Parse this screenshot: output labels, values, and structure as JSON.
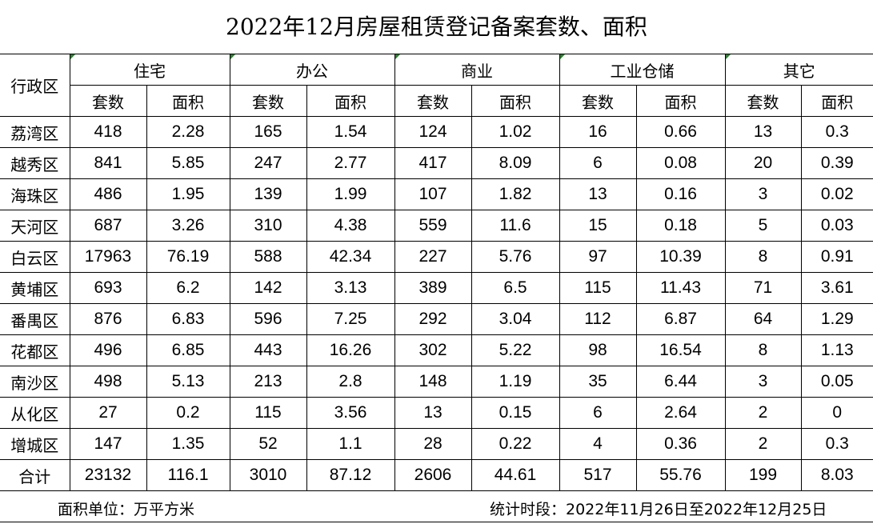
{
  "title": "2022年12月房屋租赁登记备案套数、面积",
  "header": {
    "district_label": "行政区",
    "groups": [
      "住宅",
      "办公",
      "商业",
      "工业仓储",
      "其它"
    ],
    "count_label": "套数",
    "area_label": "面积"
  },
  "rows": [
    {
      "district": "荔湾区",
      "values": [
        "418",
        "2.28",
        "165",
        "1.54",
        "124",
        "1.02",
        "16",
        "0.66",
        "13",
        "0.3"
      ]
    },
    {
      "district": "越秀区",
      "values": [
        "841",
        "5.85",
        "247",
        "2.77",
        "417",
        "8.09",
        "6",
        "0.08",
        "20",
        "0.39"
      ]
    },
    {
      "district": "海珠区",
      "values": [
        "486",
        "1.95",
        "139",
        "1.99",
        "107",
        "1.82",
        "13",
        "0.16",
        "3",
        "0.02"
      ]
    },
    {
      "district": "天河区",
      "values": [
        "687",
        "3.26",
        "310",
        "4.38",
        "559",
        "11.6",
        "15",
        "0.18",
        "5",
        "0.03"
      ]
    },
    {
      "district": "白云区",
      "values": [
        "17963",
        "76.19",
        "588",
        "42.34",
        "227",
        "5.76",
        "97",
        "10.39",
        "8",
        "0.91"
      ]
    },
    {
      "district": "黄埔区",
      "values": [
        "693",
        "6.2",
        "142",
        "3.13",
        "389",
        "6.5",
        "115",
        "11.43",
        "71",
        "3.61"
      ]
    },
    {
      "district": "番禺区",
      "values": [
        "876",
        "6.83",
        "596",
        "7.25",
        "292",
        "3.04",
        "112",
        "6.87",
        "64",
        "1.29"
      ]
    },
    {
      "district": "花都区",
      "values": [
        "496",
        "6.85",
        "443",
        "16.26",
        "302",
        "5.22",
        "98",
        "16.54",
        "8",
        "1.13"
      ]
    },
    {
      "district": "南沙区",
      "values": [
        "498",
        "5.13",
        "213",
        "2.8",
        "148",
        "1.19",
        "35",
        "6.44",
        "3",
        "0.05"
      ]
    },
    {
      "district": "从化区",
      "values": [
        "27",
        "0.2",
        "115",
        "3.56",
        "13",
        "0.15",
        "6",
        "2.64",
        "2",
        "0"
      ]
    },
    {
      "district": "增城区",
      "values": [
        "147",
        "1.35",
        "52",
        "1.1",
        "28",
        "0.22",
        "4",
        "0.36",
        "2",
        "0.3"
      ]
    }
  ],
  "total": {
    "label": "合计",
    "values": [
      "23132",
      "116.1",
      "3010",
      "87.12",
      "2606",
      "44.61",
      "517",
      "55.76",
      "199",
      "8.03"
    ]
  },
  "footer": {
    "unit": "面积单位：万平方米",
    "period": "统计时段：2022年11月26日至2022年12月25日"
  },
  "colors": {
    "corner_marker": "#2e7d32"
  }
}
